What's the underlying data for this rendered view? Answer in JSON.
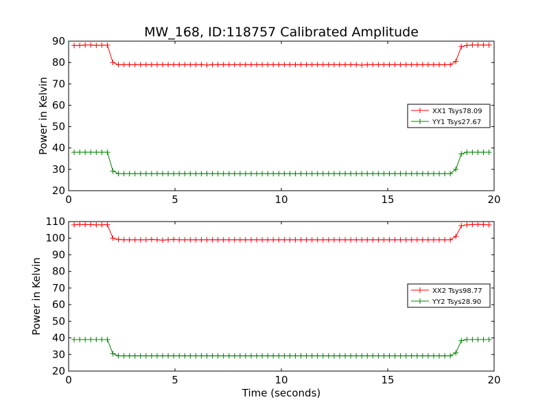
{
  "chart_data": {
    "title": "MW_168, ID:118757 Calibrated Amplitude",
    "xlabel": "Time (seconds)",
    "colors": {
      "XX": "#ff0000",
      "YY": "#008000"
    },
    "charts": [
      {
        "type": "line",
        "ylabel": "Power in Kelvin",
        "xlim": [
          0,
          20
        ],
        "ylim": [
          20,
          90
        ],
        "xticks": [
          "0",
          "5",
          "10",
          "15",
          "20"
        ],
        "yticks": [
          "20",
          "30",
          "40",
          "50",
          "60",
          "70",
          "80",
          "90"
        ],
        "legend_position": "center-right",
        "series": [
          {
            "name": "XX1 Tsys78.09",
            "color": "#ff0000",
            "x": [
              0.26,
              0.52,
              0.78,
              1.04,
              1.3,
              1.56,
              1.82,
              2.08,
              2.34,
              2.6,
              2.86,
              3.12,
              3.38,
              3.64,
              3.9,
              4.16,
              4.42,
              4.68,
              4.94,
              5.2,
              5.46,
              5.72,
              5.98,
              6.24,
              6.5,
              6.76,
              7.02,
              7.28,
              7.54,
              7.8,
              8.06,
              8.32,
              8.58,
              8.84,
              9.1,
              9.36,
              9.62,
              9.88,
              10.14,
              10.4,
              10.66,
              10.92,
              11.18,
              11.44,
              11.7,
              11.96,
              12.22,
              12.48,
              12.74,
              13.0,
              13.26,
              13.52,
              13.78,
              14.04,
              14.3,
              14.56,
              14.82,
              15.08,
              15.34,
              15.6,
              15.86,
              16.12,
              16.38,
              16.64,
              16.9,
              17.16,
              17.42,
              17.68,
              17.94,
              18.2,
              18.46,
              18.72,
              18.98,
              19.24,
              19.5,
              19.76
            ],
            "y": [
              88,
              88,
              88.2,
              88.2,
              88,
              88.1,
              88.1,
              80,
              79,
              79,
              79,
              79,
              79,
              79,
              79,
              79,
              79,
              79,
              79,
              79,
              79,
              79,
              79,
              79,
              78.8,
              79,
              79,
              79,
              79,
              79,
              79,
              79,
              79,
              79,
              79,
              79,
              79,
              79,
              79,
              79,
              79,
              79,
              79,
              79,
              79,
              79,
              79,
              79,
              79,
              79,
              79,
              79,
              78.8,
              79,
              79,
              79,
              79,
              79,
              79,
              79,
              79,
              79,
              79,
              79,
              79,
              79,
              79,
              79,
              79,
              80.5,
              87.5,
              88,
              88.2,
              88.2,
              88.2,
              88.2
            ]
          },
          {
            "name": "YY1 Tsys27.67",
            "color": "#008000",
            "x": [
              0.26,
              0.52,
              0.78,
              1.04,
              1.3,
              1.56,
              1.82,
              2.08,
              2.34,
              2.6,
              2.86,
              3.12,
              3.38,
              3.64,
              3.9,
              4.16,
              4.42,
              4.68,
              4.94,
              5.2,
              5.46,
              5.72,
              5.98,
              6.24,
              6.5,
              6.76,
              7.02,
              7.28,
              7.54,
              7.8,
              8.06,
              8.32,
              8.58,
              8.84,
              9.1,
              9.36,
              9.62,
              9.88,
              10.14,
              10.4,
              10.66,
              10.92,
              11.18,
              11.44,
              11.7,
              11.96,
              12.22,
              12.48,
              12.74,
              13.0,
              13.26,
              13.52,
              13.78,
              14.04,
              14.3,
              14.56,
              14.82,
              15.08,
              15.34,
              15.6,
              15.86,
              16.12,
              16.38,
              16.64,
              16.9,
              17.16,
              17.42,
              17.68,
              17.94,
              18.2,
              18.46,
              18.72,
              18.98,
              19.24,
              19.5,
              19.76
            ],
            "y": [
              38,
              38,
              38,
              38,
              38,
              38,
              38,
              29.2,
              28,
              28,
              28,
              28,
              28,
              28,
              28,
              28,
              28,
              28,
              28,
              28,
              28,
              28,
              28,
              28,
              28,
              28,
              28,
              28,
              28,
              28,
              28,
              28,
              28,
              28,
              28,
              28,
              28,
              28,
              28,
              28,
              28,
              28,
              28,
              28,
              28,
              28,
              28,
              28,
              28,
              28,
              28,
              28,
              28,
              28,
              28,
              28,
              28,
              28,
              28,
              28,
              28,
              28,
              28,
              28,
              28,
              28,
              28,
              28,
              28,
              30,
              37.2,
              38,
              38,
              38,
              38,
              38
            ]
          }
        ]
      },
      {
        "type": "line",
        "ylabel": "Power in Kelvin",
        "xlim": [
          0,
          20
        ],
        "ylim": [
          20,
          110
        ],
        "xticks": [
          "0",
          "5",
          "10",
          "15",
          "20"
        ],
        "yticks": [
          "20",
          "30",
          "40",
          "50",
          "60",
          "70",
          "80",
          "90",
          "100",
          "110"
        ],
        "legend_position": "center-right",
        "series": [
          {
            "name": "XX2 Tsys98.77",
            "color": "#ff0000",
            "x": [
              0.26,
              0.52,
              0.78,
              1.04,
              1.3,
              1.56,
              1.82,
              2.08,
              2.34,
              2.6,
              2.86,
              3.12,
              3.38,
              3.64,
              3.9,
              4.16,
              4.42,
              4.68,
              4.94,
              5.2,
              5.46,
              5.72,
              5.98,
              6.24,
              6.5,
              6.76,
              7.02,
              7.28,
              7.54,
              7.8,
              8.06,
              8.32,
              8.58,
              8.84,
              9.1,
              9.36,
              9.62,
              9.88,
              10.14,
              10.4,
              10.66,
              10.92,
              11.18,
              11.44,
              11.7,
              11.96,
              12.22,
              12.48,
              12.74,
              13.0,
              13.26,
              13.52,
              13.78,
              14.04,
              14.3,
              14.56,
              14.82,
              15.08,
              15.34,
              15.6,
              15.86,
              16.12,
              16.38,
              16.64,
              16.9,
              17.16,
              17.42,
              17.68,
              17.94,
              18.2,
              18.46,
              18.72,
              18.98,
              19.24,
              19.5,
              19.76
            ],
            "y": [
              108,
              108.3,
              108.2,
              108.2,
              108,
              108,
              108.2,
              100,
              99.2,
              99,
              99,
              99,
              99,
              99,
              99.2,
              99,
              98.8,
              99,
              99.2,
              99,
              99,
              99,
              99,
              99,
              99,
              99,
              99,
              99,
              99,
              99,
              99,
              99,
              99,
              99,
              99,
              99,
              99,
              99,
              99,
              99,
              99,
              99,
              99,
              99,
              99,
              99,
              99,
              99,
              99,
              99,
              99,
              99,
              99,
              99,
              99,
              99,
              99,
              99,
              99,
              99,
              99,
              99,
              99,
              99,
              99,
              99,
              99,
              99,
              99,
              101,
              107.5,
              108,
              108.2,
              108.3,
              108.2,
              108
            ]
          },
          {
            "name": "YY2 Tsys28.90",
            "color": "#008000",
            "x": [
              0.26,
              0.52,
              0.78,
              1.04,
              1.3,
              1.56,
              1.82,
              2.08,
              2.34,
              2.6,
              2.86,
              3.12,
              3.38,
              3.64,
              3.9,
              4.16,
              4.42,
              4.68,
              4.94,
              5.2,
              5.46,
              5.72,
              5.98,
              6.24,
              6.5,
              6.76,
              7.02,
              7.28,
              7.54,
              7.8,
              8.06,
              8.32,
              8.58,
              8.84,
              9.1,
              9.36,
              9.62,
              9.88,
              10.14,
              10.4,
              10.66,
              10.92,
              11.18,
              11.44,
              11.7,
              11.96,
              12.22,
              12.48,
              12.74,
              13.0,
              13.26,
              13.52,
              13.78,
              14.04,
              14.3,
              14.56,
              14.82,
              15.08,
              15.34,
              15.6,
              15.86,
              16.12,
              16.38,
              16.64,
              16.9,
              17.16,
              17.42,
              17.68,
              17.94,
              18.2,
              18.46,
              18.72,
              18.98,
              19.24,
              19.5,
              19.76
            ],
            "y": [
              39,
              39,
              39,
              39,
              39,
              39,
              39,
              30.5,
              29.2,
              29.2,
              29.2,
              29.2,
              29.2,
              29.2,
              29.2,
              29.2,
              29.2,
              29.2,
              29.2,
              29.2,
              29.2,
              29.2,
              29.2,
              29.2,
              29.2,
              29.2,
              29.2,
              29.2,
              29.2,
              29.2,
              29.2,
              29.2,
              29.2,
              29.2,
              29.2,
              29.2,
              29.2,
              29.2,
              29.2,
              29.2,
              29.2,
              29.2,
              29.2,
              29.2,
              29.2,
              29.2,
              29.2,
              29.2,
              29.2,
              29.2,
              29.2,
              29.2,
              29.2,
              29.2,
              29.2,
              29.2,
              29.2,
              29.2,
              29.2,
              29.2,
              29.2,
              29.2,
              29.2,
              29.2,
              29.2,
              29.2,
              29.2,
              29.2,
              29.2,
              31,
              38.3,
              39,
              39,
              39,
              39,
              39
            ]
          }
        ]
      }
    ]
  }
}
